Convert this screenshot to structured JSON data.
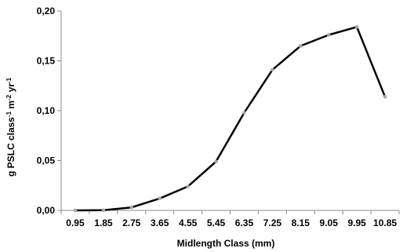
{
  "chart_data": {
    "type": "line",
    "title": "",
    "xlabel": "Midlength Class (mm)",
    "ylabel_parts": [
      {
        "text": "g PSLC class",
        "sup": false
      },
      {
        "text": "-1",
        "sup": true
      },
      {
        "text": " m",
        "sup": false
      },
      {
        "text": "-2",
        "sup": true
      },
      {
        "text": " yr",
        "sup": false
      },
      {
        "text": "-1",
        "sup": true
      }
    ],
    "categories": [
      "0.95",
      "1.85",
      "2.75",
      "3.65",
      "4.55",
      "5.45",
      "6.35",
      "7.25",
      "8.15",
      "9.05",
      "9.95",
      "10.85"
    ],
    "series": [
      {
        "values": [
          0.0,
          0.0002,
          0.003,
          0.012,
          0.024,
          0.049,
          0.098,
          0.141,
          0.165,
          0.176,
          0.184,
          0.114
        ]
      }
    ],
    "ylim": [
      0,
      0.2
    ],
    "yticks": [
      {
        "value": 0.0,
        "label": "0,00"
      },
      {
        "value": 0.05,
        "label": "0,05"
      },
      {
        "value": 0.1,
        "label": "0,10"
      },
      {
        "value": 0.15,
        "label": "0,15"
      },
      {
        "value": 0.2,
        "label": "0,20"
      }
    ],
    "grid": false,
    "legend": "none",
    "colors": {
      "line": "#000000",
      "marker": "#a6a6a6",
      "axis": "#8c8c8c"
    }
  }
}
